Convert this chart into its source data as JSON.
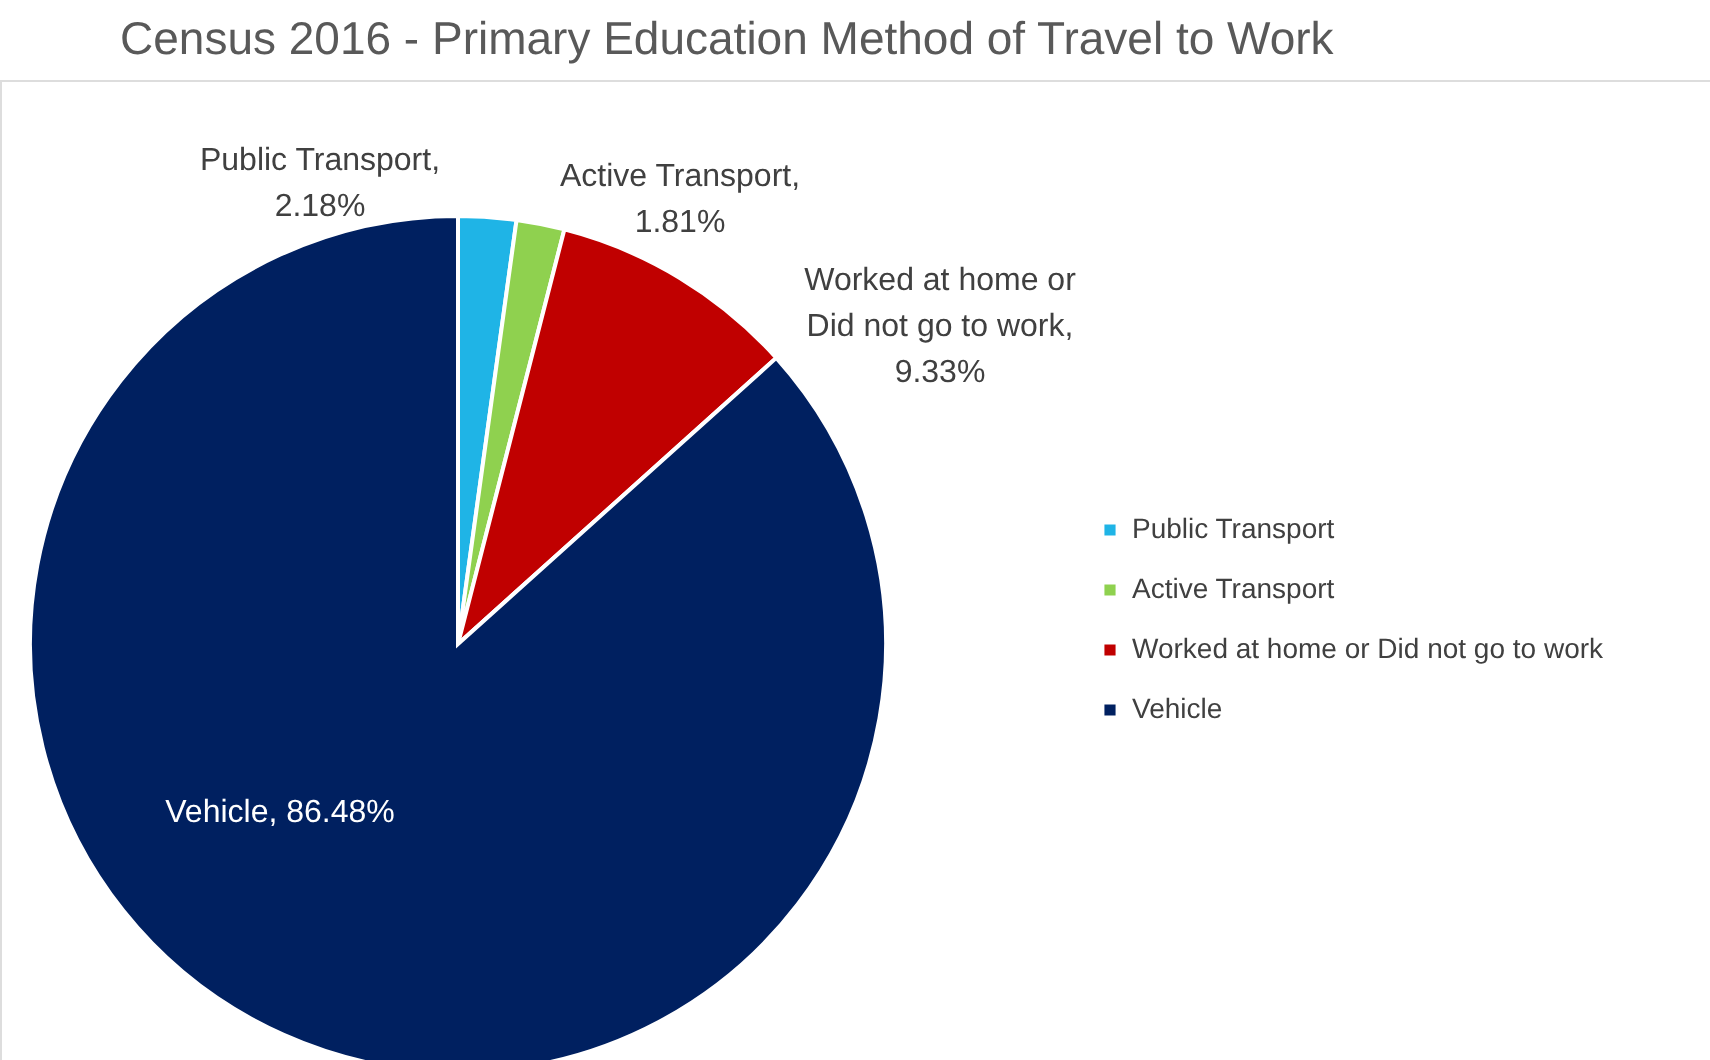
{
  "chart_data": {
    "type": "pie",
    "title": "Census 2016 - Primary Education Method of Travel to Work",
    "categories": [
      "Public Transport",
      "Active Transport",
      "Worked at home or Did not go to work",
      "Vehicle"
    ],
    "values": [
      2.18,
      1.81,
      9.33,
      86.48
    ],
    "colors": [
      "#1fb4e6",
      "#8fd14f",
      "#c00000",
      "#002060"
    ],
    "value_labels": [
      "Public Transport, 2.18%",
      "Active Transport, 1.81%",
      "Worked at home or Did not go to work, 9.33%",
      "Vehicle, 86.48%"
    ],
    "data_labels": true,
    "legend": "right"
  }
}
